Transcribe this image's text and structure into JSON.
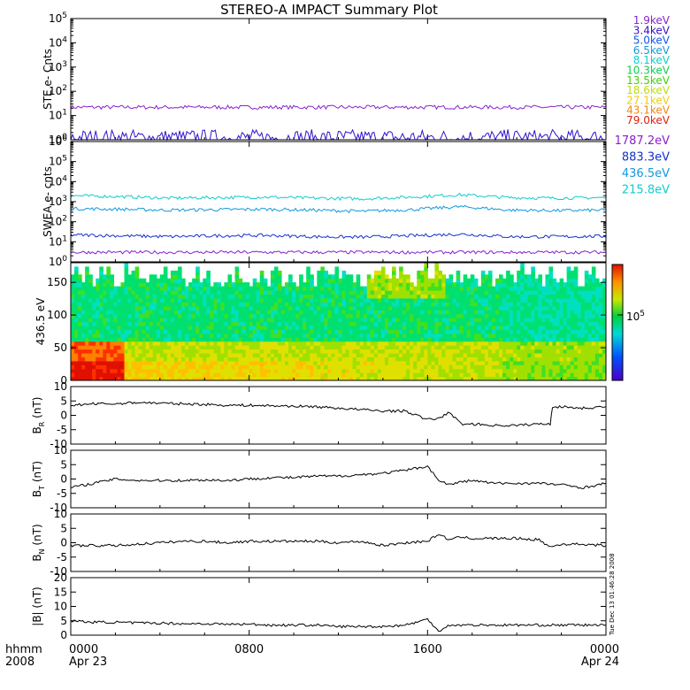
{
  "title": "STEREO-A IMPACT Summary Plot",
  "footer": {
    "hhmm": "hhmm",
    "year": "2008",
    "vertical_stamp": "Tue Dec 13 01:46:28 2008"
  },
  "chart_data": [
    {
      "type": "line",
      "ylabel": "STE e- Cnts",
      "yscale": "log",
      "ylim": [
        1,
        100000
      ],
      "yticks": [
        "10^0",
        "10^1",
        "10^2",
        "10^3",
        "10^4",
        "10^5"
      ],
      "legend": [
        {
          "name": "1.9keV",
          "color": "#8822cc"
        },
        {
          "name": "3.4keV",
          "color": "#3311cc"
        },
        {
          "name": "5.0keV",
          "color": "#1155ee"
        },
        {
          "name": "6.5keV",
          "color": "#1199dd"
        },
        {
          "name": "8.1keV",
          "color": "#11cccc"
        },
        {
          "name": "10.3keV",
          "color": "#11cc55"
        },
        {
          "name": "13.5keV",
          "color": "#44cc11"
        },
        {
          "name": "18.6keV",
          "color": "#bbdd11"
        },
        {
          "name": "27.1keV",
          "color": "#eecc11"
        },
        {
          "name": "43.1keV",
          "color": "#ee8811"
        },
        {
          "name": "79.0keV",
          "color": "#dd2211"
        }
      ],
      "series": [
        {
          "name": "1.9keV",
          "level": 22,
          "noise": 0.08
        },
        {
          "name": "3.4keV",
          "level": 1.2,
          "noise": 0.35
        }
      ]
    },
    {
      "type": "line",
      "ylabel": "SWEA e- cnts",
      "yscale": "log",
      "ylim": [
        1,
        1000000
      ],
      "yticks": [
        "10^0",
        "10^1",
        "10^2",
        "10^3",
        "10^4",
        "10^5",
        "10^6"
      ],
      "legend": [
        {
          "name": "1787.2eV",
          "color": "#8822cc"
        },
        {
          "name": "883.3eV",
          "color": "#1133cc"
        },
        {
          "name": "436.5eV",
          "color": "#1199dd"
        },
        {
          "name": "215.8eV",
          "color": "#11cccc"
        }
      ],
      "series": [
        {
          "name": "215.8eV",
          "values": [
            2000,
            1800,
            1500,
            1600,
            1700,
            1500,
            1400,
            1700,
            2200,
            1600,
            1500,
            1600
          ]
        },
        {
          "name": "436.5eV",
          "values": [
            450,
            420,
            380,
            400,
            420,
            380,
            330,
            400,
            560,
            380,
            360,
            380
          ]
        },
        {
          "name": "883.3eV",
          "values": [
            22,
            20,
            18,
            20,
            21,
            18,
            17,
            20,
            24,
            18,
            18,
            19
          ]
        },
        {
          "name": "1787.2eV",
          "values": [
            3,
            3,
            3,
            3,
            3,
            3,
            3,
            3,
            3,
            3,
            3,
            3
          ]
        }
      ]
    },
    {
      "type": "heatmap",
      "ylabel": "436.5 eV",
      "ylim": [
        0,
        180
      ],
      "yticks": [
        0,
        50,
        100,
        150
      ],
      "colorbar_label": "10^5"
    },
    {
      "type": "line",
      "ylabel": "B_R (nT)",
      "ylim": [
        -10,
        10
      ],
      "yticks": [
        -10,
        -5,
        0,
        5,
        10
      ],
      "x": [
        0,
        1,
        2,
        3,
        4,
        5,
        6,
        7,
        8,
        9,
        10,
        11,
        12,
        13,
        14,
        15,
        16,
        16.5,
        17,
        17.5,
        18,
        19,
        20,
        21,
        21.5,
        21.6,
        22,
        23,
        24
      ],
      "values": [
        3.5,
        4,
        4,
        4.5,
        4.2,
        4,
        3.8,
        3.5,
        3.5,
        3.3,
        3.2,
        3,
        2.5,
        2,
        1.5,
        1.5,
        -1.5,
        -1,
        1,
        -3,
        -3,
        -3.5,
        -3.5,
        -3,
        -3,
        3,
        3,
        2.5,
        3
      ]
    },
    {
      "type": "line",
      "ylabel": "B_T (nT)",
      "ylim": [
        -10,
        10
      ],
      "yticks": [
        -10,
        -5,
        0,
        5,
        10
      ],
      "x": [
        0,
        1,
        2,
        3,
        4,
        5,
        6,
        7,
        8,
        9,
        10,
        11,
        12,
        13,
        14,
        15,
        16,
        16.5,
        17,
        17.5,
        18,
        19,
        20,
        21,
        22,
        23,
        24
      ],
      "values": [
        -3,
        -1.5,
        0,
        -0.5,
        -0.5,
        -0.5,
        -0.3,
        -0.5,
        0,
        0.5,
        0.5,
        1,
        1,
        1.5,
        2,
        3,
        4.5,
        -0.5,
        -2,
        -1,
        -0.5,
        -1.5,
        -1.5,
        -1.5,
        -2,
        -3,
        -1.5
      ]
    },
    {
      "type": "line",
      "ylabel": "B_N (nT)",
      "ylim": [
        -10,
        10
      ],
      "yticks": [
        -10,
        -5,
        0,
        5,
        10
      ],
      "x": [
        0,
        1,
        2,
        3,
        4,
        5,
        6,
        7,
        8,
        9,
        10,
        11,
        12,
        13,
        14,
        15,
        16,
        16.5,
        17,
        17.5,
        18,
        19,
        20,
        21,
        21.5,
        22,
        23,
        24
      ],
      "values": [
        -1,
        -1,
        -1,
        -0.5,
        0,
        0.5,
        0.5,
        0,
        0.5,
        0.5,
        0.5,
        0.5,
        0,
        0.5,
        -1,
        0,
        0.5,
        3,
        1,
        2,
        1.5,
        1.5,
        1.5,
        1,
        -1.5,
        -0.5,
        -0.5,
        -1
      ]
    },
    {
      "type": "line",
      "ylabel": "|B| (nT)",
      "ylim": [
        0,
        20
      ],
      "yticks": [
        0,
        5,
        10,
        15,
        20
      ],
      "x": [
        0,
        1,
        2,
        3,
        4,
        5,
        6,
        7,
        8,
        9,
        10,
        11,
        12,
        13,
        14,
        15,
        16,
        16.5,
        17,
        17.5,
        18,
        19,
        20,
        21,
        22,
        23,
        24
      ],
      "values": [
        5,
        4.5,
        4.5,
        4.2,
        4.2,
        4,
        4,
        3.8,
        3.8,
        3.5,
        3.5,
        3.5,
        3,
        3,
        3,
        3.5,
        5.5,
        1.5,
        3.5,
        3.5,
        3.5,
        3.5,
        3.5,
        3.5,
        3.5,
        3.5,
        3.5
      ]
    }
  ],
  "x_axis": {
    "range": [
      0,
      24
    ],
    "ticks": [
      {
        "value": 0,
        "label": "0000",
        "sub": "Apr 23"
      },
      {
        "value": 8,
        "label": "0800",
        "sub": ""
      },
      {
        "value": 16,
        "label": "1600",
        "sub": ""
      },
      {
        "value": 24,
        "label": "0000",
        "sub": "Apr 24"
      }
    ]
  }
}
